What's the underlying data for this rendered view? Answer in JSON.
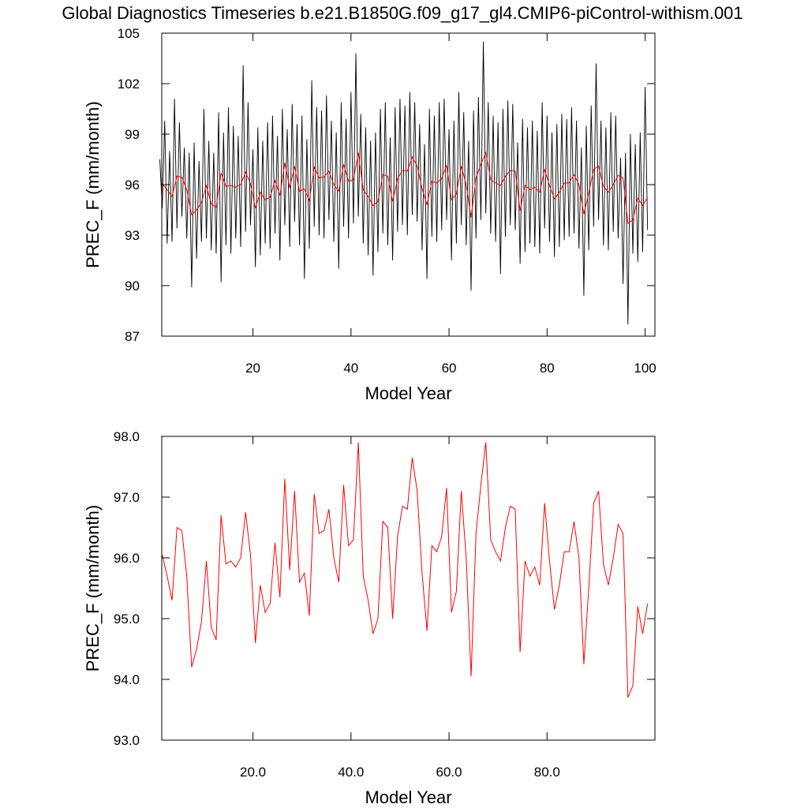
{
  "chart_data": [
    {
      "type": "line",
      "title": "Global Diagnostics Timeseries b.e21.B1850G.f09_g17_gl4.CMIP6-piControl-withism.001",
      "ylabel": "PREC_F (mm/month)",
      "xlabel": "Model Year",
      "xlim": [
        1.4,
        102
      ],
      "xticks": [
        20,
        40,
        60,
        80,
        100
      ],
      "ylim": [
        87,
        105
      ],
      "yticks": [
        87,
        90,
        93,
        96,
        99,
        102,
        105
      ],
      "series": [
        {
          "color": "#000000",
          "x": [
            1,
            1.5,
            2,
            2.5,
            3,
            3.5,
            4,
            4.5,
            5,
            5.5,
            6,
            6.5,
            7,
            7.5,
            8,
            8.5,
            9,
            9.5,
            10,
            10.5,
            11,
            11.5,
            12,
            12.5,
            13,
            13.5,
            14,
            14.5,
            15,
            15.5,
            16,
            16.5,
            17,
            17.5,
            18,
            18.5,
            19,
            19.5,
            20,
            20.5,
            21,
            21.5,
            22,
            22.5,
            23,
            23.5,
            24,
            24.5,
            25,
            25.5,
            26,
            26.5,
            27,
            27.5,
            28,
            28.5,
            29,
            29.5,
            30,
            30.5,
            31,
            31.5,
            32,
            32.5,
            33,
            33.5,
            34,
            34.5,
            35,
            35.5,
            36,
            36.5,
            37,
            37.5,
            38,
            38.5,
            39,
            39.5,
            40,
            40.5,
            41,
            41.5,
            42,
            42.5,
            43,
            43.5,
            44,
            44.5,
            45,
            45.5,
            46,
            46.5,
            47,
            47.5,
            48,
            48.5,
            49,
            49.5,
            50,
            50.5,
            51,
            51.5,
            52,
            52.5,
            53,
            53.5,
            54,
            54.5,
            55,
            55.5,
            56,
            56.5,
            57,
            57.5,
            58,
            58.5,
            59,
            59.5,
            60,
            60.5,
            61,
            61.5,
            62,
            62.5,
            63,
            63.5,
            64,
            64.5,
            65,
            65.5,
            66,
            66.5,
            67,
            67.5,
            68,
            68.5,
            69,
            69.5,
            70,
            70.5,
            71,
            71.5,
            72,
            72.5,
            73,
            73.5,
            74,
            74.5,
            75,
            75.5,
            76,
            76.5,
            77,
            77.5,
            78,
            78.5,
            79,
            79.5,
            80,
            80.5,
            81,
            81.5,
            82,
            82.5,
            83,
            83.5,
            84,
            84.5,
            85,
            85.5,
            86,
            86.5,
            87,
            87.5,
            88,
            88.5,
            89,
            89.5,
            90,
            90.5,
            91,
            91.5,
            92,
            92.5,
            93,
            93.5,
            94,
            94.5,
            95,
            95.5,
            96,
            96.5,
            97,
            97.5,
            98,
            98.5,
            99,
            99.5,
            100,
            100.5
          ],
          "values": [
            97.5,
            94.6,
            99.8,
            92.5,
            98.0,
            92.6,
            101.1,
            93.4,
            99.7,
            94.1,
            98.2,
            92.8,
            97.9,
            89.9,
            98.5,
            91.6,
            97.4,
            92.6,
            100.5,
            92.8,
            98.6,
            92.1,
            97.9,
            91.9,
            100.3,
            90.2,
            99.1,
            92.4,
            100.6,
            91.9,
            99.5,
            92.8,
            98.9,
            92.3,
            103.1,
            93.2,
            100.9,
            93.6,
            98.1,
            91.1,
            99.4,
            91.8,
            98.6,
            92.5,
            99.7,
            92.2,
            100.1,
            93.1,
            98.9,
            91.5,
            100.5,
            93.6,
            99.3,
            92.3,
            100.8,
            93.8,
            99.6,
            92.4,
            100.1,
            90.4,
            98.7,
            92.2,
            102.2,
            93.5,
            100.6,
            93.0,
            100.4,
            92.8,
            101.3,
            93.9,
            99.8,
            92.6,
            99.1,
            91.0,
            100.9,
            93.5,
            99.9,
            92.8,
            101.5,
            93.7,
            103.8,
            94.1,
            100.2,
            92.5,
            99.4,
            91.8,
            98.6,
            90.6,
            99.1,
            92.0,
            100.5,
            93.1,
            100.9,
            92.4,
            98.8,
            91.5,
            100.6,
            93.2,
            101.1,
            93.6,
            100.7,
            93.0,
            101.5,
            94.2,
            100.9,
            93.8,
            99.6,
            92.1,
            98.4,
            90.4,
            100.5,
            92.9,
            100.1,
            92.6,
            100.9,
            93.3,
            101.1,
            93.9,
            99.3,
            91.5,
            99.8,
            92.5,
            101.5,
            93.6,
            100.3,
            92.4,
            98.6,
            89.7,
            100.4,
            92.8,
            101.2,
            93.9,
            104.5,
            94.3,
            100.9,
            93.1,
            100.1,
            92.6,
            99.7,
            90.7,
            100.5,
            92.9,
            101.0,
            93.6,
            100.8,
            93.3,
            98.5,
            91.3,
            99.9,
            92.0,
            99.4,
            92.5,
            99.8,
            92.3,
            99.2,
            91.9,
            100.9,
            93.4,
            100.1,
            92.6,
            99.1,
            91.7,
            99.6,
            92.3,
            100.2,
            92.7,
            99.9,
            92.9,
            100.6,
            93.1,
            99.8,
            92.2,
            98.2,
            89.4,
            99.5,
            92.1,
            100.7,
            93.5,
            103.2,
            93.9,
            99.8,
            92.4,
            99.4,
            92.1,
            100.3,
            93.2,
            100.1,
            92.8,
            97.6,
            90.1,
            97.9,
            87.7,
            99.0,
            91.9,
            98.4,
            91.4,
            99.1,
            92.0,
            101.8,
            93.3
          ]
        },
        {
          "color": "#ff0000",
          "x": [
            1.5,
            2.5,
            3.5,
            4.5,
            5.5,
            6.5,
            7.5,
            8.5,
            9.5,
            10.5,
            11.5,
            12.5,
            13.5,
            14.5,
            15.5,
            16.5,
            17.5,
            18.5,
            19.5,
            20.5,
            21.5,
            22.5,
            23.5,
            24.5,
            25.5,
            26.5,
            27.5,
            28.5,
            29.5,
            30.5,
            31.5,
            32.5,
            33.5,
            34.5,
            35.5,
            36.5,
            37.5,
            38.5,
            39.5,
            40.5,
            41.5,
            42.5,
            43.5,
            44.5,
            45.5,
            46.5,
            47.5,
            48.5,
            49.5,
            50.5,
            51.5,
            52.5,
            53.5,
            54.5,
            55.5,
            56.5,
            57.5,
            58.5,
            59.5,
            60.5,
            61.5,
            62.5,
            63.5,
            64.5,
            65.5,
            66.5,
            67.5,
            68.5,
            69.5,
            70.5,
            71.5,
            72.5,
            73.5,
            74.5,
            75.5,
            76.5,
            77.5,
            78.5,
            79.5,
            80.5,
            81.5,
            82.5,
            83.5,
            84.5,
            85.5,
            86.5,
            87.5,
            88.5,
            89.5,
            90.5,
            91.5,
            92.5,
            93.5,
            94.5,
            95.5,
            96.5,
            97.5,
            98.5,
            99.5,
            100.5
          ],
          "values": [
            96.05,
            95.7,
            95.3,
            96.5,
            96.45,
            95.7,
            94.2,
            94.5,
            94.95,
            95.95,
            94.85,
            94.65,
            96.7,
            95.9,
            95.95,
            95.85,
            96.0,
            96.75,
            96.05,
            94.6,
            95.55,
            95.1,
            95.25,
            96.25,
            95.35,
            97.3,
            95.8,
            97.1,
            95.6,
            95.75,
            95.05,
            97.05,
            96.4,
            96.45,
            96.8,
            96.0,
            95.6,
            97.2,
            96.2,
            96.3,
            97.9,
            95.7,
            95.3,
            94.75,
            95.0,
            96.6,
            96.5,
            95.0,
            96.35,
            96.85,
            96.8,
            97.65,
            97.1,
            95.75,
            94.8,
            96.2,
            96.1,
            96.35,
            97.15,
            95.1,
            95.45,
            97.1,
            96.0,
            94.05,
            96.4,
            97.2,
            97.9,
            96.3,
            96.1,
            95.95,
            96.5,
            96.85,
            96.8,
            94.45,
            95.95,
            95.7,
            95.85,
            95.55,
            96.9,
            95.95,
            95.15,
            95.55,
            96.1,
            96.1,
            96.6,
            96.0,
            94.25,
            95.5,
            96.9,
            97.1,
            95.9,
            95.55,
            96.0,
            96.55,
            96.4,
            93.7,
            93.9,
            95.2,
            94.75,
            95.25
          ]
        }
      ]
    },
    {
      "type": "line",
      "ylabel": "PREC_F (mm/month)",
      "xlabel": "Model Year",
      "xlim": [
        1.4,
        102
      ],
      "xticks": [
        {
          "value": 20,
          "label": "20.0"
        },
        {
          "value": 40,
          "label": "40.0"
        },
        {
          "value": 60,
          "label": "60.0"
        },
        {
          "value": 80,
          "label": "80.0"
        }
      ],
      "ylim": [
        93,
        98
      ],
      "yticks": [
        {
          "value": 93,
          "label": "93.0"
        },
        {
          "value": 94,
          "label": "94.0"
        },
        {
          "value": 95,
          "label": "95.0"
        },
        {
          "value": 96,
          "label": "96.0"
        },
        {
          "value": 97,
          "label": "97.0"
        },
        {
          "value": 98,
          "label": "98.0"
        }
      ],
      "series": [
        {
          "color": "#ff0000",
          "x": [
            1.5,
            2.5,
            3.5,
            4.5,
            5.5,
            6.5,
            7.5,
            8.5,
            9.5,
            10.5,
            11.5,
            12.5,
            13.5,
            14.5,
            15.5,
            16.5,
            17.5,
            18.5,
            19.5,
            20.5,
            21.5,
            22.5,
            23.5,
            24.5,
            25.5,
            26.5,
            27.5,
            28.5,
            29.5,
            30.5,
            31.5,
            32.5,
            33.5,
            34.5,
            35.5,
            36.5,
            37.5,
            38.5,
            39.5,
            40.5,
            41.5,
            42.5,
            43.5,
            44.5,
            45.5,
            46.5,
            47.5,
            48.5,
            49.5,
            50.5,
            51.5,
            52.5,
            53.5,
            54.5,
            55.5,
            56.5,
            57.5,
            58.5,
            59.5,
            60.5,
            61.5,
            62.5,
            63.5,
            64.5,
            65.5,
            66.5,
            67.5,
            68.5,
            69.5,
            70.5,
            71.5,
            72.5,
            73.5,
            74.5,
            75.5,
            76.5,
            77.5,
            78.5,
            79.5,
            80.5,
            81.5,
            82.5,
            83.5,
            84.5,
            85.5,
            86.5,
            87.5,
            88.5,
            89.5,
            90.5,
            91.5,
            92.5,
            93.5,
            94.5,
            95.5,
            96.5,
            97.5,
            98.5,
            99.5,
            100.5
          ],
          "values": [
            96.05,
            95.7,
            95.3,
            96.5,
            96.45,
            95.7,
            94.2,
            94.5,
            94.95,
            95.95,
            94.85,
            94.65,
            96.7,
            95.9,
            95.95,
            95.85,
            96.0,
            96.75,
            96.05,
            94.6,
            95.55,
            95.1,
            95.25,
            96.25,
            95.35,
            97.3,
            95.8,
            97.1,
            95.6,
            95.75,
            95.05,
            97.05,
            96.4,
            96.45,
            96.8,
            96.0,
            95.6,
            97.2,
            96.2,
            96.3,
            97.9,
            95.7,
            95.3,
            94.75,
            95.0,
            96.6,
            96.5,
            95.0,
            96.35,
            96.85,
            96.8,
            97.65,
            97.1,
            95.75,
            94.8,
            96.2,
            96.1,
            96.35,
            97.15,
            95.1,
            95.45,
            97.1,
            96.0,
            94.05,
            96.4,
            97.2,
            97.9,
            96.3,
            96.1,
            95.95,
            96.5,
            96.85,
            96.8,
            94.45,
            95.95,
            95.7,
            95.85,
            95.55,
            96.9,
            95.95,
            95.15,
            95.55,
            96.1,
            96.1,
            96.6,
            96.0,
            94.25,
            95.5,
            96.9,
            97.1,
            95.9,
            95.55,
            96.0,
            96.55,
            96.4,
            93.7,
            93.9,
            95.2,
            94.75,
            95.25
          ]
        }
      ]
    }
  ]
}
